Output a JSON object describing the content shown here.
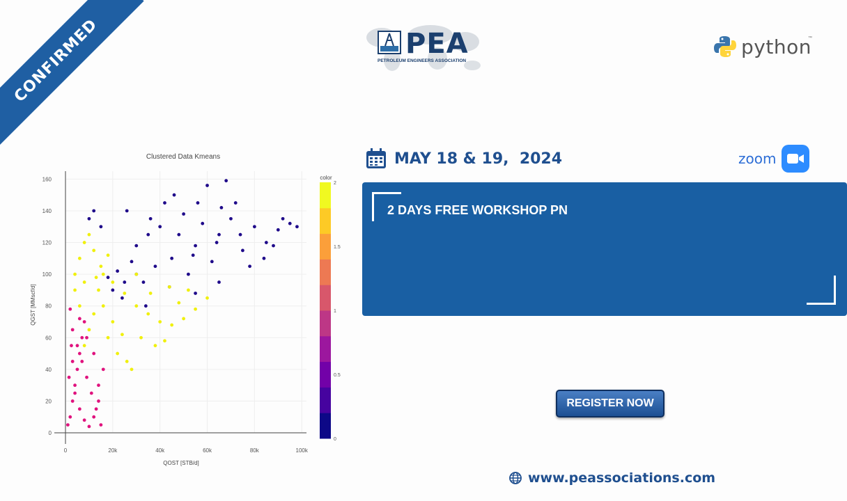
{
  "ribbon": {
    "label": "CONFIRMED",
    "color": "#1f5fa3"
  },
  "header": {
    "pea": {
      "word": "PEA",
      "subtitle": "PETROLEUM ENGINEERS ASSOCIATION"
    },
    "python": {
      "word": "python",
      "tm": "™"
    }
  },
  "event": {
    "date": "MAY 18 & 19,  2024",
    "zoom_word": "zoom",
    "title": "2 DAYS FREE WORKSHOP PN",
    "register_label": "REGISTER NOW",
    "website": "www.peassociations.com"
  },
  "icons": [
    "calendar-icon",
    "zoom-camera-icon",
    "globe-icon",
    "python-icon",
    "world-map-icon"
  ],
  "colors": {
    "brand_blue": "#195fa3",
    "text_blue": "#1f4f8f",
    "zoom_blue": "#2d8cff"
  },
  "chart_data": {
    "type": "scatter",
    "title": "Clustered Data Kmeans",
    "xlabel": "QOST [STB/d]",
    "ylabel": "QGST [MMscf/d]",
    "xlim": [
      0,
      102000
    ],
    "ylim": [
      0,
      165
    ],
    "x_ticks": [
      0,
      20000,
      40000,
      60000,
      80000,
      100000
    ],
    "x_tick_labels": [
      "0",
      "20k",
      "40k",
      "60k",
      "80k",
      "100k"
    ],
    "y_ticks": [
      0,
      20,
      40,
      60,
      80,
      100,
      120,
      140,
      160
    ],
    "y_tick_labels": [
      "0",
      "20",
      "40",
      "60",
      "80",
      "100",
      "120",
      "140",
      "160"
    ],
    "colorbar": {
      "title": "color",
      "range": [
        0,
        2
      ],
      "ticks": [
        0,
        0.5,
        1,
        1.5,
        2
      ],
      "tick_labels": [
        "0",
        "0.5",
        "1",
        "1.5",
        "2"
      ],
      "colors": [
        "#0d0887",
        "#46039f",
        "#7201a8",
        "#9c179e",
        "#bd3786",
        "#d8576b",
        "#ed7953",
        "#fb9f3a",
        "#fdca26",
        "#f0f921"
      ]
    },
    "series": [
      {
        "cluster": 0,
        "color": "#1f0a8a",
        "points": [
          [
            30000,
            100
          ],
          [
            45000,
            110
          ],
          [
            55000,
            118
          ],
          [
            65000,
            125
          ],
          [
            70000,
            135
          ],
          [
            80000,
            130
          ],
          [
            90000,
            128
          ],
          [
            95000,
            132
          ],
          [
            42000,
            145
          ],
          [
            68000,
            159
          ],
          [
            60000,
            156
          ],
          [
            50000,
            138
          ],
          [
            35000,
            125
          ],
          [
            25000,
            95
          ],
          [
            20000,
            90
          ],
          [
            38000,
            105
          ],
          [
            52000,
            100
          ],
          [
            62000,
            108
          ],
          [
            75000,
            115
          ],
          [
            85000,
            120
          ],
          [
            48000,
            125
          ],
          [
            58000,
            132
          ],
          [
            66000,
            142
          ],
          [
            72000,
            145
          ],
          [
            40000,
            130
          ],
          [
            30000,
            118
          ],
          [
            28000,
            108
          ],
          [
            22000,
            102
          ],
          [
            18000,
            98
          ],
          [
            33000,
            95
          ],
          [
            44000,
            92
          ],
          [
            55000,
            88
          ],
          [
            65000,
            95
          ],
          [
            78000,
            105
          ],
          [
            88000,
            118
          ],
          [
            98000,
            130
          ],
          [
            92000,
            135
          ],
          [
            15000,
            130
          ],
          [
            10000,
            135
          ],
          [
            12000,
            140
          ],
          [
            46000,
            150
          ],
          [
            56000,
            145
          ],
          [
            36000,
            135
          ],
          [
            26000,
            140
          ],
          [
            64000,
            120
          ],
          [
            74000,
            125
          ],
          [
            84000,
            110
          ],
          [
            54000,
            112
          ],
          [
            24000,
            85
          ],
          [
            34000,
            80
          ]
        ]
      },
      {
        "cluster": 1,
        "color": "#e0137e",
        "points": [
          [
            1000,
            5
          ],
          [
            2000,
            10
          ],
          [
            3000,
            20
          ],
          [
            4000,
            30
          ],
          [
            5000,
            40
          ],
          [
            6000,
            50
          ],
          [
            7000,
            60
          ],
          [
            8000,
            70
          ],
          [
            2000,
            78
          ],
          [
            3000,
            65
          ],
          [
            5000,
            55
          ],
          [
            7000,
            45
          ],
          [
            9000,
            35
          ],
          [
            11000,
            25
          ],
          [
            13000,
            15
          ],
          [
            15000,
            5
          ],
          [
            4000,
            25
          ],
          [
            6000,
            15
          ],
          [
            8000,
            8
          ],
          [
            10000,
            4
          ],
          [
            12000,
            10
          ],
          [
            14000,
            20
          ],
          [
            3000,
            45
          ],
          [
            1500,
            35
          ],
          [
            2500,
            55
          ],
          [
            6000,
            72
          ],
          [
            9000,
            60
          ],
          [
            12000,
            50
          ],
          [
            16000,
            40
          ],
          [
            14000,
            30
          ]
        ]
      },
      {
        "cluster": 2,
        "color": "#f0f00e",
        "points": [
          [
            4000,
            100
          ],
          [
            6000,
            110
          ],
          [
            8000,
            120
          ],
          [
            10000,
            125
          ],
          [
            12000,
            115
          ],
          [
            15000,
            105
          ],
          [
            20000,
            95
          ],
          [
            25000,
            88
          ],
          [
            30000,
            80
          ],
          [
            35000,
            75
          ],
          [
            40000,
            70
          ],
          [
            45000,
            68
          ],
          [
            50000,
            72
          ],
          [
            55000,
            78
          ],
          [
            60000,
            85
          ],
          [
            18000,
            60
          ],
          [
            22000,
            50
          ],
          [
            26000,
            45
          ],
          [
            28000,
            40
          ],
          [
            20000,
            70
          ],
          [
            16000,
            80
          ],
          [
            14000,
            90
          ],
          [
            12000,
            75
          ],
          [
            10000,
            65
          ],
          [
            8000,
            55
          ],
          [
            6000,
            80
          ],
          [
            4000,
            90
          ],
          [
            24000,
            62
          ],
          [
            32000,
            60
          ],
          [
            38000,
            55
          ],
          [
            42000,
            58
          ],
          [
            48000,
            82
          ],
          [
            52000,
            90
          ],
          [
            36000,
            88
          ],
          [
            44000,
            92
          ],
          [
            16000,
            100
          ],
          [
            13000,
            98
          ],
          [
            18000,
            112
          ],
          [
            8000,
            95
          ],
          [
            30000,
            100
          ]
        ]
      }
    ]
  }
}
